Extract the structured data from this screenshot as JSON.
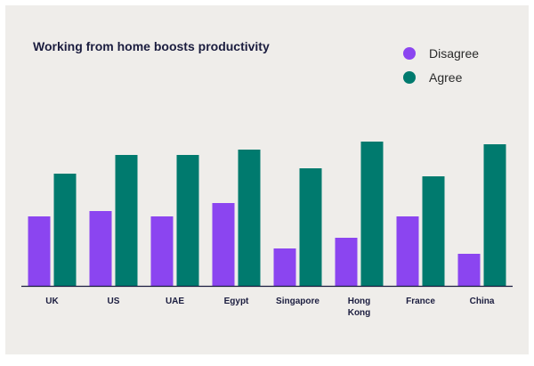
{
  "colors": {
    "background": "#efedea",
    "disagree": "#8b45f0",
    "agree": "#007a6e",
    "axis": "#1b1d3f"
  },
  "chart_data": {
    "type": "bar",
    "title": "Working from home boosts productivity",
    "categories": [
      "UK",
      "US",
      "UAE",
      "Egypt",
      "Singapore",
      "Hong Kong",
      "France",
      "China"
    ],
    "category_lines": [
      [
        "UK"
      ],
      [
        "US"
      ],
      [
        "UAE"
      ],
      [
        "Egypt"
      ],
      [
        "Singapore"
      ],
      [
        "Hong",
        "Kong"
      ],
      [
        "France"
      ],
      [
        "China"
      ]
    ],
    "series": [
      {
        "name": "Disagree",
        "color": "#8b45f0",
        "values": [
          26,
          28,
          26,
          31,
          14,
          18,
          26,
          12
        ]
      },
      {
        "name": "Agree",
        "color": "#007a6e",
        "values": [
          42,
          49,
          49,
          51,
          44,
          54,
          41,
          53
        ]
      }
    ],
    "ylim": [
      0,
      60
    ],
    "grid": false,
    "legend_position": "top-right",
    "xlabel": "",
    "ylabel": ""
  }
}
